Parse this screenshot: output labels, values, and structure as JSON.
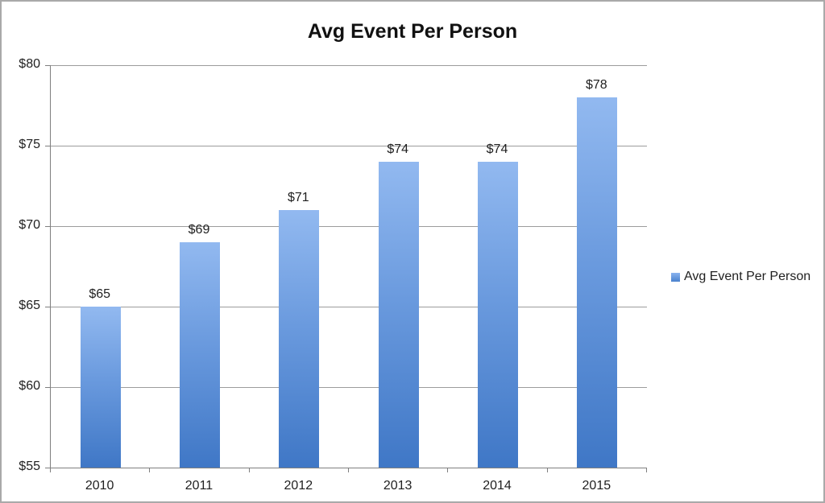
{
  "chart_data": {
    "type": "bar",
    "title": "Avg Event Per Person",
    "categories": [
      "2010",
      "2011",
      "2012",
      "2013",
      "2014",
      "2015"
    ],
    "series": [
      {
        "name": "Avg Event Per Person",
        "values": [
          65,
          69,
          71,
          74,
          74,
          78
        ]
      }
    ],
    "data_labels": [
      "$65",
      "$69",
      "$71",
      "$74",
      "$74",
      "$78"
    ],
    "xlabel": "",
    "ylabel": "",
    "ylim": [
      55,
      80
    ],
    "yticks": [
      55,
      60,
      65,
      70,
      75,
      80
    ],
    "ytick_labels": [
      "$55",
      "$60",
      "$65",
      "$70",
      "$75",
      "$80"
    ],
    "grid": true,
    "legend": {
      "position": "right",
      "entries": [
        {
          "label": "Avg Event Per Person",
          "color": "#5b8ed8"
        }
      ]
    },
    "colors": {
      "bar_top": "#92b9f0",
      "bar_bottom": "#3f77c6",
      "gridline": "#9c9c9c",
      "axis": "#7f7f7f",
      "text": "#1f1f1f"
    }
  }
}
